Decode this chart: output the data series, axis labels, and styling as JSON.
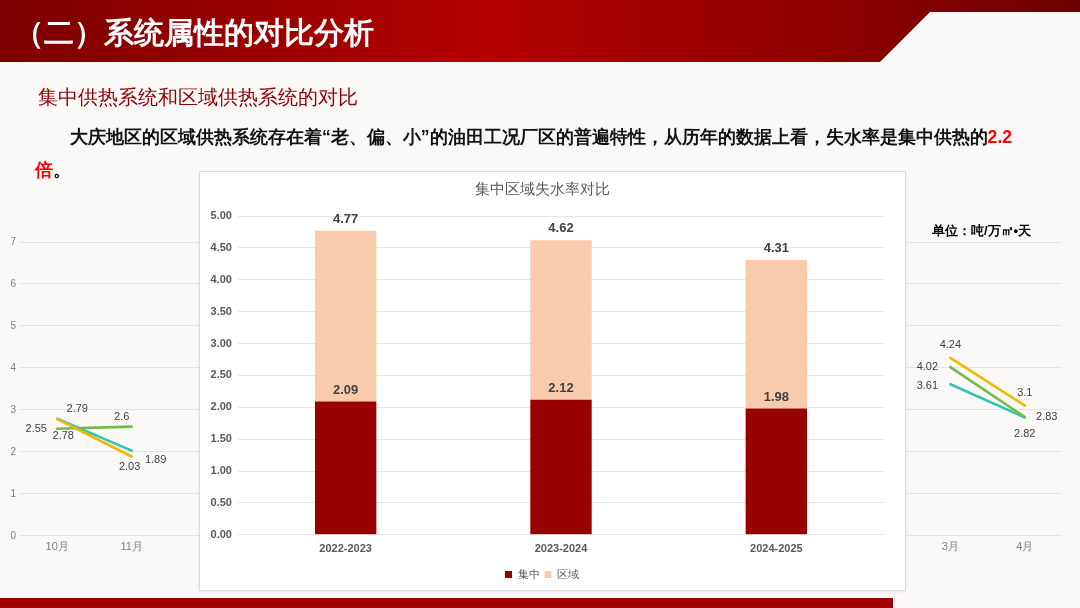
{
  "chart_data": [
    {
      "type": "line",
      "categories": [
        "10月",
        "11月",
        null,
        null,
        null,
        null,
        null,
        null,
        null,
        null,
        null,
        null,
        "3月",
        "4月"
      ],
      "series": [
        {
          "color": "#f2b800",
          "values": [
            2.78,
            1.89,
            null,
            null,
            null,
            null,
            null,
            null,
            null,
            null,
            null,
            null,
            4.24,
            3.1
          ]
        },
        {
          "color": "#72bb46",
          "values": [
            2.55,
            2.6,
            null,
            null,
            null,
            null,
            null,
            null,
            null,
            null,
            null,
            null,
            4.02,
            2.83
          ]
        },
        {
          "color": "#33c3b5",
          "values": [
            2.79,
            2.03,
            null,
            null,
            null,
            null,
            null,
            null,
            null,
            null,
            null,
            null,
            3.61,
            2.82
          ]
        }
      ],
      "ylim": [
        0,
        7
      ],
      "yticks": [
        0,
        1,
        2,
        3,
        4,
        5,
        6,
        7
      ],
      "grid": "y",
      "marker": "none",
      "data_labels": true,
      "annotations": [
        "（二）系统属性的对比分析",
        "集中供热系统和区域供热系统的对比",
        "大庆地区的区域供热系统存在着“老、偏、小”的油田工况厂区的普遍特性，从历年的数据上看，失水率是集中供热的",
        "2.2",
        "倍",
        "。",
        "单位：吨/万㎡•天"
      ]
    },
    {
      "type": "bar",
      "title": "集中区域失水率对比",
      "categories": [
        "2022-2023",
        "2023-2024",
        "2024-2025"
      ],
      "stacked": true,
      "series": [
        {
          "name": "集中",
          "color": "#990000",
          "values": [
            2.09,
            2.12,
            1.98
          ],
          "value_labels": [
            "2.09",
            "2.12",
            "1.98"
          ]
        },
        {
          "name": "区域",
          "color": "#f8cbad",
          "values": [
            2.68,
            2.5,
            2.33
          ]
        }
      ],
      "totals": [
        "4.77",
        "4.62",
        "4.31"
      ],
      "ylim": [
        0,
        5
      ],
      "yticks": [
        {
          "value": 0,
          "label": "0.00"
        },
        {
          "value": 0.5,
          "label": "0.50"
        },
        {
          "value": 1,
          "label": "1.00"
        },
        {
          "value": 1.5,
          "label": "1.50"
        },
        {
          "value": 2,
          "label": "2.00"
        },
        {
          "value": 2.5,
          "label": "2.50"
        },
        {
          "value": 3,
          "label": "3.00"
        },
        {
          "value": 3.5,
          "label": "3.50"
        },
        {
          "value": 4,
          "label": "4.00"
        },
        {
          "value": 4.5,
          "label": "4.50"
        },
        {
          "value": 5,
          "label": "5.00"
        }
      ],
      "grid": "y",
      "legend": "bottom"
    }
  ]
}
